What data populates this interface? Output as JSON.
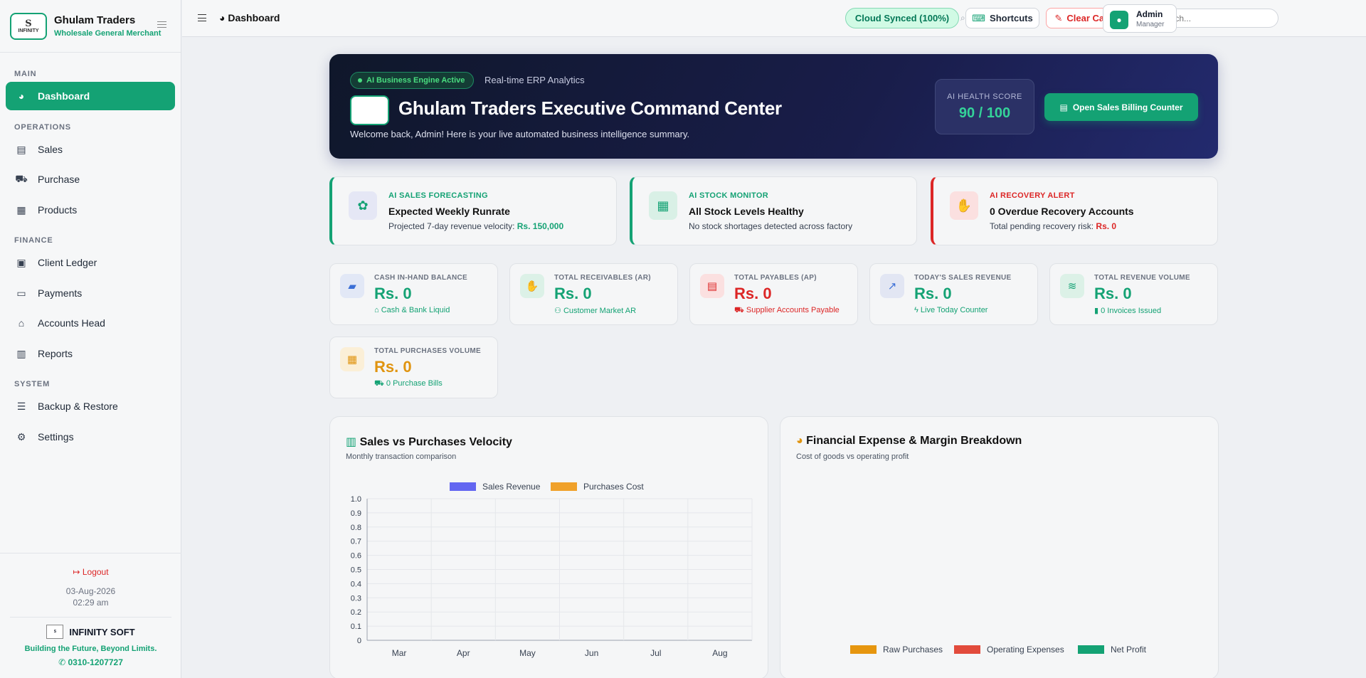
{
  "sidebar": {
    "brand_name": "Ghulam Traders",
    "brand_tagline": "Wholesale General Merchant",
    "logo_text": "INFINITY",
    "sections": {
      "main": "MAIN",
      "operations": "OPERATIONS",
      "finance": "FINANCE",
      "system": "SYSTEM"
    },
    "items": [
      {
        "label": "Dashboard",
        "icon": "pie-chart-icon"
      },
      {
        "label": "Sales",
        "icon": "invoice-icon"
      },
      {
        "label": "Purchase",
        "icon": "cart-icon"
      },
      {
        "label": "Products",
        "icon": "boxes-icon"
      },
      {
        "label": "Client Ledger",
        "icon": "contact-card-icon"
      },
      {
        "label": "Payments",
        "icon": "money-icon"
      },
      {
        "label": "Accounts Head",
        "icon": "bank-icon"
      },
      {
        "label": "Reports",
        "icon": "bar-chart-icon"
      },
      {
        "label": "Backup & Restore",
        "icon": "database-icon"
      },
      {
        "label": "Settings",
        "icon": "gear-icon"
      }
    ],
    "logout_label": "Logout",
    "date": "03-Aug-2026",
    "time": "02:29 am",
    "vendor_name": "INFINITY SOFT",
    "vendor_tagline": "Building the Future, Beyond Limits.",
    "vendor_phone": "0310-1207727"
  },
  "topbar": {
    "title": "Dashboard",
    "synced": "Cloud Synced (100%)",
    "shortcuts": "Shortcuts",
    "clear_cache": "Clear Cache",
    "search_placeholder": "Search...",
    "user_name": "Admin",
    "user_role": "Manager"
  },
  "hero": {
    "badge": "AI Business Engine Active",
    "subtitle": "Real-time ERP Analytics",
    "title": "Ghulam Traders Executive Command Center",
    "welcome": "Welcome back, Admin! Here is your live automated business intelligence summary.",
    "health_label": "AI HEALTH SCORE",
    "health_value": "90 / 100",
    "open_button": "Open Sales Billing Counter"
  },
  "ai_cards": [
    {
      "tag": "AI SALES FORECASTING",
      "title": "Expected Weekly Runrate",
      "text": "Projected 7-day revenue velocity: ",
      "highlight": "Rs. 150,000",
      "color": "#14a274",
      "icon": "brain-icon"
    },
    {
      "tag": "AI STOCK MONITOR",
      "title": "All Stock Levels Healthy",
      "text": "No stock shortages detected across factory",
      "highlight": "",
      "color": "#14a274",
      "icon": "boxes-icon"
    },
    {
      "tag": "AI RECOVERY ALERT",
      "title": "0 Overdue Recovery Accounts",
      "text": "Total pending recovery risk: ",
      "highlight": "Rs. 0",
      "color": "#dc2626",
      "icon": "hand-money-icon"
    }
  ],
  "kpis": [
    {
      "label": "CASH IN-HAND BALANCE",
      "value": "Rs. 0",
      "sub": "Cash & Bank Liquid",
      "color": "#14a274",
      "sub_color": "#14a274",
      "icon": "wallet-icon"
    },
    {
      "label": "TOTAL RECEIVABLES (AR)",
      "value": "Rs. 0",
      "sub": "Customer Market AR",
      "color": "#14a274",
      "sub_color": "#14a274",
      "icon": "hand-coin-icon"
    },
    {
      "label": "TOTAL PAYABLES (AP)",
      "value": "Rs. 0",
      "sub": "Supplier Accounts Payable",
      "color": "#dc2626",
      "sub_color": "#dc2626",
      "icon": "bill-icon"
    },
    {
      "label": "TODAY'S SALES REVENUE",
      "value": "Rs. 0",
      "sub": "Live Today Counter",
      "color": "#14a274",
      "sub_color": "#14a274",
      "icon": "line-chart-icon"
    },
    {
      "label": "TOTAL REVENUE VOLUME",
      "value": "Rs. 0",
      "sub": "0 Invoices Issued",
      "color": "#14a274",
      "sub_color": "#14a274",
      "icon": "coins-icon"
    },
    {
      "label": "TOTAL PURCHASES VOLUME",
      "value": "Rs. 0",
      "sub": "0 Purchase Bills",
      "color": "#e09410",
      "sub_color": "#14a274",
      "icon": "dolly-icon"
    }
  ],
  "chart_panel": {
    "title": "Sales vs Purchases Velocity",
    "subtitle": "Monthly transaction comparison"
  },
  "chart_data": [
    {
      "type": "bar",
      "categories": [
        "Mar",
        "Apr",
        "May",
        "Jun",
        "Jul",
        "Aug"
      ],
      "series": [
        {
          "name": "Sales Revenue",
          "values": [
            0,
            0,
            0,
            0,
            0,
            0
          ],
          "color": "#6366f1"
        },
        {
          "name": "Purchases Cost",
          "values": [
            0,
            0,
            0,
            0,
            0,
            0
          ],
          "color": "#f0a12a"
        }
      ],
      "yticks": [
        "0",
        "0.1",
        "0.2",
        "0.3",
        "0.4",
        "0.5",
        "0.6",
        "0.7",
        "0.8",
        "0.9",
        "1.0"
      ],
      "ylim": [
        0,
        1
      ],
      "grid": true,
      "legend": "top"
    },
    {
      "type": "pie",
      "title": "Financial Expense & Margin Breakdown",
      "subtitle": "Cost of goods vs operating profit",
      "labels": [
        "Raw Purchases",
        "Operating Expenses",
        "Net Profit"
      ],
      "values": [
        0,
        0,
        0
      ],
      "colors": [
        "#e6960f",
        "#e24b3c",
        "#14a274"
      ],
      "legend": "bottom"
    }
  ]
}
